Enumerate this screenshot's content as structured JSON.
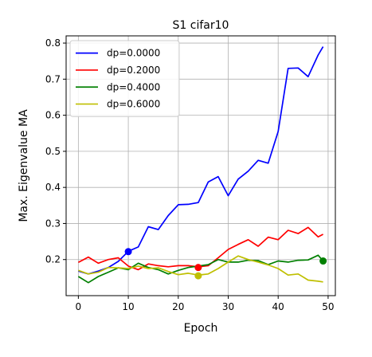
{
  "chart_data": {
    "type": "line",
    "title": "S1 cifar10",
    "xlabel": "Epoch",
    "ylabel": "Max. Eigenvalue MA",
    "xlim": [
      -2.45,
      51.45
    ],
    "ylim": [
      0.1,
      0.82
    ],
    "xticks": [
      "0",
      "10",
      "20",
      "30",
      "40",
      "50"
    ],
    "yticks": [
      "0.2",
      "0.3",
      "0.4",
      "0.5",
      "0.6",
      "0.7",
      "0.8"
    ],
    "grid": true,
    "legend_position": "upper-left",
    "series": [
      {
        "name": "dp=0.0000",
        "color": "#0000ff",
        "x": [
          0,
          2,
          4,
          6,
          8,
          10,
          12,
          14,
          16,
          18,
          20,
          22,
          24,
          26,
          28,
          30,
          32,
          34,
          36,
          38,
          40,
          42,
          44,
          46,
          48,
          49
        ],
        "y": [
          0.168,
          0.16,
          0.168,
          0.178,
          0.195,
          0.223,
          0.235,
          0.291,
          0.283,
          0.322,
          0.352,
          0.353,
          0.358,
          0.415,
          0.43,
          0.377,
          0.423,
          0.445,
          0.475,
          0.467,
          0.555,
          0.73,
          0.731,
          0.707,
          0.767,
          0.79
        ],
        "marker": {
          "x": 10,
          "y": 0.222
        }
      },
      {
        "name": "dp=0.2000",
        "color": "#ff0000",
        "x": [
          0,
          2,
          4,
          6,
          8,
          10,
          12,
          14,
          16,
          18,
          20,
          22,
          24,
          26,
          28,
          30,
          32,
          34,
          36,
          38,
          40,
          42,
          44,
          46,
          48,
          49
        ],
        "y": [
          0.192,
          0.207,
          0.19,
          0.2,
          0.205,
          0.182,
          0.172,
          0.188,
          0.183,
          0.18,
          0.183,
          0.183,
          0.18,
          0.183,
          0.205,
          0.228,
          0.242,
          0.255,
          0.237,
          0.262,
          0.255,
          0.281,
          0.272,
          0.289,
          0.263,
          0.27
        ],
        "marker": {
          "x": 24,
          "y": 0.178
        }
      },
      {
        "name": "dp=0.4000",
        "color": "#008000",
        "x": [
          0,
          2,
          4,
          6,
          8,
          10,
          12,
          14,
          16,
          18,
          20,
          22,
          24,
          26,
          28,
          30,
          32,
          34,
          36,
          38,
          40,
          42,
          44,
          46,
          48,
          49
        ],
        "y": [
          0.153,
          0.136,
          0.153,
          0.165,
          0.177,
          0.172,
          0.19,
          0.178,
          0.172,
          0.16,
          0.17,
          0.178,
          0.182,
          0.186,
          0.2,
          0.193,
          0.193,
          0.198,
          0.197,
          0.186,
          0.196,
          0.193,
          0.198,
          0.199,
          0.212,
          0.196
        ],
        "marker": {
          "x": 49,
          "y": 0.196
        }
      },
      {
        "name": "dp=0.6000",
        "color": "#bfbf00",
        "x": [
          0,
          2,
          4,
          6,
          8,
          10,
          12,
          14,
          16,
          18,
          20,
          22,
          24,
          26,
          28,
          30,
          32,
          34,
          36,
          38,
          40,
          42,
          44,
          46,
          48,
          49
        ],
        "y": [
          0.17,
          0.16,
          0.165,
          0.178,
          0.177,
          0.175,
          0.182,
          0.175,
          0.177,
          0.167,
          0.158,
          0.162,
          0.157,
          0.16,
          0.175,
          0.193,
          0.21,
          0.2,
          0.193,
          0.185,
          0.175,
          0.157,
          0.16,
          0.143,
          0.14,
          0.138
        ],
        "marker": {
          "x": 24,
          "y": 0.155
        }
      }
    ]
  }
}
